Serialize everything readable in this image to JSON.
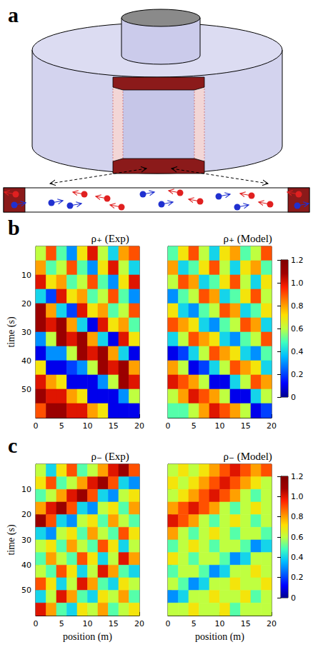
{
  "panel_labels": [
    "a",
    "b",
    "c"
  ],
  "chart_data": [
    {
      "type": "heatmap",
      "title": "ρ₊ (Exp)",
      "x": [
        1,
        3,
        5,
        7,
        9,
        11,
        13,
        15,
        17,
        19
      ],
      "y": [
        2.5,
        7.5,
        12.5,
        17.5,
        22.5,
        27.5,
        32.5,
        37.5,
        42.5,
        47.5,
        52.5,
        57.5
      ],
      "cells": [
        [
          0.6,
          0.9,
          0.5,
          0.3,
          0.7,
          1.0,
          0.6,
          0.4,
          0.8,
          0.9
        ],
        [
          0.8,
          0.5,
          0.6,
          0.9,
          0.5,
          0.3,
          0.7,
          1.0,
          0.6,
          0.4
        ],
        [
          1.0,
          0.7,
          0.8,
          0.5,
          0.6,
          0.9,
          0.5,
          0.3,
          0.7,
          1.0
        ],
        [
          0.4,
          0.2,
          1.0,
          0.7,
          0.8,
          0.5,
          0.6,
          0.9,
          0.5,
          0.3
        ],
        [
          1.1,
          0.8,
          0.4,
          0.2,
          1.0,
          0.7,
          0.8,
          0.5,
          0.6,
          0.9
        ],
        [
          1.1,
          1.0,
          1.1,
          0.8,
          0.4,
          0.1,
          1.0,
          0.7,
          0.8,
          0.5
        ],
        [
          0.3,
          0.6,
          1.1,
          1.0,
          1.1,
          0.8,
          0.4,
          0.1,
          1.0,
          0.7
        ],
        [
          0.1,
          0.3,
          0.3,
          0.6,
          1.1,
          1.0,
          1.1,
          0.8,
          0.4,
          0.1
        ],
        [
          0.7,
          0.1,
          0.1,
          0.2,
          0.3,
          0.6,
          1.1,
          1.0,
          1.1,
          0.8
        ],
        [
          1.0,
          0.8,
          0.7,
          0.1,
          0.1,
          0.1,
          0.3,
          0.6,
          1.1,
          1.0
        ],
        [
          1.1,
          1.0,
          1.0,
          0.8,
          0.7,
          0.1,
          0.1,
          0.1,
          0.3,
          0.6
        ],
        [
          0.9,
          1.1,
          1.1,
          1.0,
          1.0,
          0.8,
          0.7,
          0.1,
          0.1,
          0.1
        ]
      ],
      "xlim": [
        0,
        20
      ],
      "ylim": [
        0,
        60
      ],
      "xticks": [
        0,
        5,
        10,
        15,
        20
      ],
      "yticks": [
        10,
        20,
        30,
        40,
        50
      ],
      "ylabel": "time (s)",
      "colorbar": {
        "range": [
          0,
          1.2
        ],
        "ticks": [
          0,
          0.2,
          0.4,
          0.6,
          0.8,
          {
            "value": 1,
            "label": "1.0"
          },
          1.2
        ]
      }
    },
    {
      "type": "heatmap",
      "title": "ρ₊ (Model)",
      "x": [
        1,
        3,
        5,
        7,
        9,
        11,
        13,
        15,
        17,
        19
      ],
      "y": [
        2.5,
        7.5,
        12.5,
        17.5,
        22.5,
        27.5,
        32.5,
        37.5,
        42.5,
        47.5,
        52.5,
        57.5
      ],
      "cells": [
        [
          0.5,
          0.7,
          0.9,
          0.6,
          0.4,
          0.7,
          0.8,
          0.5,
          0.6,
          0.9
        ],
        [
          0.8,
          0.4,
          0.5,
          0.7,
          0.9,
          0.6,
          0.4,
          0.7,
          0.8,
          0.5
        ],
        [
          0.6,
          0.9,
          0.8,
          0.4,
          0.5,
          0.7,
          0.9,
          0.6,
          0.4,
          0.7
        ],
        [
          0.3,
          0.5,
          0.6,
          0.9,
          0.8,
          0.4,
          0.5,
          0.7,
          0.9,
          0.6
        ],
        [
          0.7,
          0.4,
          0.3,
          0.5,
          0.6,
          0.9,
          0.8,
          0.4,
          0.5,
          0.7
        ],
        [
          0.9,
          0.8,
          0.7,
          0.4,
          0.3,
          0.5,
          0.6,
          0.9,
          0.8,
          0.4
        ],
        [
          0.4,
          0.6,
          0.9,
          0.8,
          0.7,
          0.4,
          0.3,
          0.5,
          0.6,
          0.9
        ],
        [
          0.1,
          0.2,
          0.4,
          0.6,
          0.9,
          0.8,
          0.7,
          0.4,
          0.3,
          0.5
        ],
        [
          0.8,
          0.6,
          0.1,
          0.2,
          0.4,
          0.6,
          0.9,
          0.8,
          0.7,
          0.4
        ],
        [
          1.0,
          0.9,
          0.8,
          0.6,
          0.1,
          0.1,
          0.4,
          0.6,
          0.9,
          0.8
        ],
        [
          0.6,
          0.8,
          1.0,
          0.9,
          0.8,
          0.6,
          0.1,
          0.1,
          0.4,
          0.6
        ],
        [
          0.5,
          0.5,
          0.6,
          0.8,
          1.0,
          0.9,
          0.8,
          0.6,
          0.1,
          0.2
        ]
      ],
      "xlim": [
        0,
        20
      ],
      "ylim": [
        0,
        60
      ],
      "xticks": [
        0,
        5,
        10,
        15,
        20
      ],
      "yticks": [
        10,
        20,
        30,
        40,
        50
      ],
      "tick_labels": "x",
      "colorbar": {
        "range": [
          0,
          1.2
        ],
        "ticks": [
          0,
          0.2,
          0.4,
          0.6,
          0.8,
          {
            "value": 1,
            "label": "1.0"
          },
          1.2
        ]
      }
    },
    {
      "type": "heatmap",
      "title": "ρ₋ (Exp)",
      "x": [
        1,
        3,
        5,
        7,
        9,
        11,
        13,
        15,
        17,
        19
      ],
      "y": [
        2.5,
        7.5,
        12.5,
        17.5,
        22.5,
        27.5,
        32.5,
        37.5,
        42.5,
        47.5,
        52.5,
        57.5
      ],
      "cells": [
        [
          0.6,
          0.4,
          0.7,
          0.9,
          0.5,
          0.6,
          0.8,
          1.0,
          1.1,
          0.9
        ],
        [
          0.7,
          0.9,
          0.5,
          0.6,
          0.8,
          1.0,
          1.1,
          0.9,
          0.4,
          0.3
        ],
        [
          0.5,
          0.6,
          0.8,
          1.0,
          1.1,
          0.9,
          0.4,
          0.3,
          0.6,
          0.7
        ],
        [
          0.8,
          1.0,
          1.1,
          0.9,
          0.4,
          0.3,
          0.6,
          0.7,
          0.5,
          0.8
        ],
        [
          1.1,
          0.9,
          0.4,
          0.3,
          0.6,
          0.7,
          0.5,
          0.8,
          0.6,
          0.5
        ],
        [
          0.4,
          0.3,
          0.6,
          0.7,
          0.5,
          0.8,
          0.6,
          0.5,
          0.9,
          0.7
        ],
        [
          0.6,
          0.7,
          0.5,
          0.8,
          0.6,
          0.5,
          0.9,
          0.7,
          0.4,
          0.6
        ],
        [
          0.5,
          0.8,
          0.6,
          0.5,
          0.9,
          0.7,
          0.4,
          0.6,
          1.0,
          0.8
        ],
        [
          0.6,
          0.5,
          0.9,
          0.7,
          0.4,
          0.6,
          1.0,
          0.8,
          0.5,
          0.4
        ],
        [
          0.9,
          0.7,
          0.4,
          0.6,
          1.0,
          0.8,
          0.5,
          0.4,
          0.7,
          0.6
        ],
        [
          0.4,
          0.6,
          1.0,
          0.8,
          0.5,
          0.4,
          0.7,
          0.6,
          0.8,
          0.5
        ],
        [
          1.0,
          0.8,
          0.5,
          0.4,
          0.7,
          0.6,
          0.8,
          0.5,
          0.6,
          0.7
        ]
      ],
      "xlim": [
        0,
        20
      ],
      "ylim": [
        0,
        60
      ],
      "xticks": [
        0,
        5,
        10,
        15,
        20
      ],
      "yticks": [
        10,
        20,
        30,
        40,
        50
      ],
      "xlabel": "position (m)",
      "ylabel": "time (s)",
      "colorbar": {
        "range": [
          0,
          1.2
        ],
        "ticks": [
          0,
          0.2,
          0.4,
          0.6,
          0.8,
          {
            "value": 1,
            "label": "1.0"
          },
          1.2
        ]
      }
    },
    {
      "type": "heatmap",
      "title": "ρ₋ (Model)",
      "x": [
        1,
        3,
        5,
        7,
        9,
        11,
        13,
        15,
        17,
        19
      ],
      "y": [
        2.5,
        7.5,
        12.5,
        17.5,
        22.5,
        27.5,
        32.5,
        37.5,
        42.5,
        47.5,
        52.5,
        57.5
      ],
      "cells": [
        [
          0.6,
          0.7,
          0.6,
          0.7,
          0.8,
          0.9,
          1.0,
          0.9,
          0.8,
          0.9
        ],
        [
          0.7,
          0.6,
          0.7,
          0.8,
          0.9,
          1.0,
          0.9,
          0.8,
          0.7,
          0.6
        ],
        [
          0.6,
          0.7,
          0.8,
          0.9,
          1.0,
          0.9,
          0.8,
          0.6,
          0.5,
          0.6
        ],
        [
          0.8,
          0.9,
          1.0,
          0.9,
          0.8,
          0.6,
          0.5,
          0.6,
          0.7,
          0.6
        ],
        [
          1.0,
          0.9,
          0.8,
          0.6,
          0.5,
          0.6,
          0.7,
          0.6,
          0.5,
          0.6
        ],
        [
          0.8,
          0.6,
          0.5,
          0.6,
          0.7,
          0.6,
          0.5,
          0.6,
          0.6,
          0.5
        ],
        [
          0.5,
          0.6,
          0.7,
          0.6,
          0.5,
          0.6,
          0.6,
          0.5,
          0.3,
          0.4
        ],
        [
          0.7,
          0.6,
          0.5,
          0.6,
          0.6,
          0.5,
          0.3,
          0.4,
          0.6,
          0.6
        ],
        [
          0.5,
          0.6,
          0.6,
          0.5,
          0.3,
          0.4,
          0.6,
          0.6,
          0.7,
          0.6
        ],
        [
          0.6,
          0.5,
          0.3,
          0.4,
          0.6,
          0.6,
          0.7,
          0.6,
          0.6,
          0.7
        ],
        [
          0.3,
          0.4,
          0.6,
          0.6,
          0.7,
          0.6,
          0.6,
          0.7,
          0.5,
          0.6
        ],
        [
          0.6,
          0.6,
          0.7,
          0.6,
          0.6,
          0.7,
          0.5,
          0.6,
          0.6,
          0.6
        ]
      ],
      "xlim": [
        0,
        20
      ],
      "ylim": [
        0,
        60
      ],
      "xticks": [
        0,
        5,
        10,
        15,
        20
      ],
      "yticks": [
        10,
        20,
        30,
        40,
        50
      ],
      "xlabel": "position (m)",
      "tick_labels": "x",
      "colorbar": {
        "range": [
          0,
          1.2
        ],
        "ticks": [
          0,
          0.2,
          0.4,
          0.6,
          0.8,
          {
            "value": 1,
            "label": "1.0"
          },
          1.2
        ]
      }
    }
  ]
}
